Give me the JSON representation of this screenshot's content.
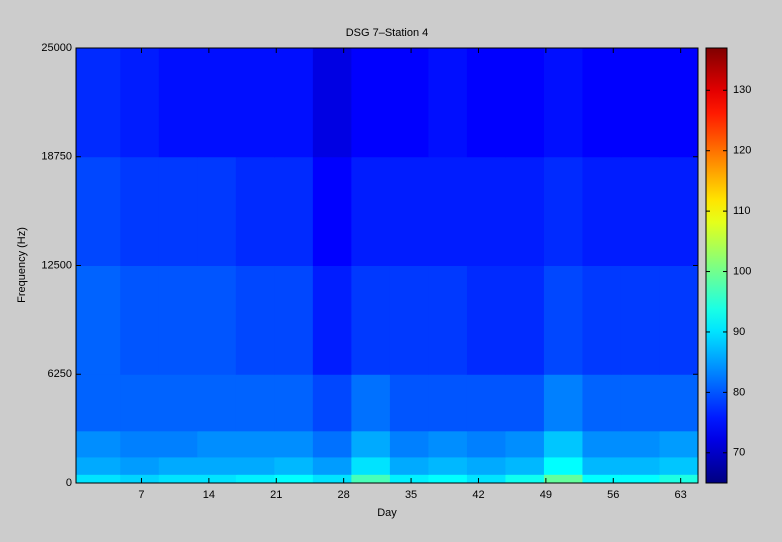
{
  "chart_data": {
    "type": "heatmap",
    "title": "DSG 7–Station 4",
    "x_label": "Day",
    "y_label": "Frequency (Hz)",
    "x": [
      0.2,
      4.8,
      8.8,
      12.8,
      16.8,
      20.8,
      24.8,
      28.8,
      32.8,
      36.8,
      40.8,
      44.8,
      48.8,
      52.8,
      56.8,
      60.8,
      64.8
    ],
    "y": [
      0,
      500,
      1500,
      3000,
      6250,
      12500,
      18750,
      25000
    ],
    "values": [
      [
        90,
        89,
        90,
        90,
        91,
        92,
        90,
        97,
        91,
        92,
        90,
        93,
        99,
        92,
        92,
        94
      ],
      [
        86,
        85,
        86,
        86,
        86,
        87,
        85,
        90,
        86,
        87,
        86,
        87,
        92,
        87,
        87,
        88
      ],
      [
        84,
        83,
        83,
        84,
        84,
        84,
        82,
        86,
        83,
        84,
        83,
        84,
        88,
        84,
        84,
        85
      ],
      [
        81,
        81,
        81,
        81,
        81,
        81,
        79,
        82,
        80,
        80,
        80,
        80,
        83,
        81,
        81,
        81
      ],
      [
        81,
        80,
        80,
        80,
        79,
        79,
        76,
        78,
        78,
        78,
        77,
        77,
        79,
        78,
        78,
        78
      ],
      [
        79,
        78,
        78,
        78,
        77,
        77,
        74,
        76,
        76,
        76,
        76,
        76,
        77,
        76,
        76,
        76
      ],
      [
        77,
        76,
        75,
        75,
        75,
        75,
        72,
        74,
        74,
        75,
        74,
        74,
        75,
        74,
        74,
        74
      ]
    ],
    "xlim": [
      0.2,
      64.8
    ],
    "xticks": [
      7,
      14,
      21,
      28,
      35,
      42,
      49,
      56,
      63
    ],
    "ylim": [
      0,
      25000
    ],
    "yticks": [
      0,
      6250,
      12500,
      18750,
      25000
    ],
    "colormap": "jet",
    "clim": [
      65,
      137
    ],
    "cticks": [
      70,
      80,
      90,
      100,
      110,
      120,
      130
    ]
  }
}
